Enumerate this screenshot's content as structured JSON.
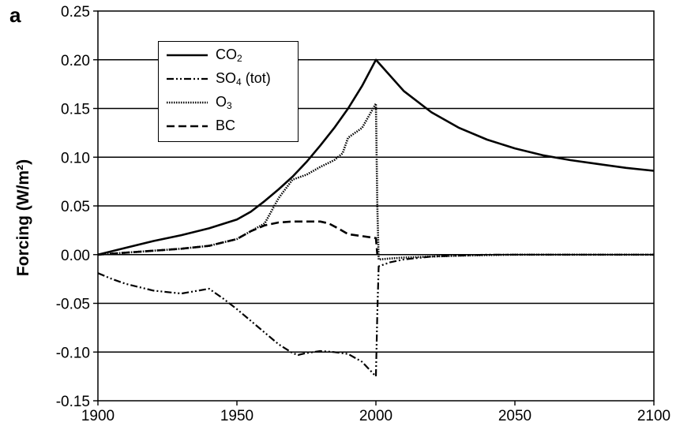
{
  "panel_label": "a",
  "chart_data": {
    "type": "line",
    "title": "",
    "xlabel": "",
    "ylabel": "Forcing (W/m²)",
    "xlim": [
      1900,
      2100
    ],
    "ylim": [
      -0.15,
      0.25
    ],
    "x_ticks": [
      1900,
      1950,
      2000,
      2050,
      2100
    ],
    "y_ticks": [
      -0.15,
      -0.1,
      -0.05,
      0.0,
      0.05,
      0.1,
      0.15,
      0.2,
      0.25
    ],
    "y_tick_labels": [
      "-0.15",
      "-0.10",
      "-0.05",
      "0.00",
      "0.05",
      "0.10",
      "0.15",
      "0.20",
      "0.25"
    ],
    "grid": "horizontal",
    "legend_position": "top-left",
    "series": [
      {
        "name": "CO2",
        "label_main": "CO",
        "label_sub": "2",
        "label_suffix": "",
        "style": "solid",
        "x": [
          1900,
          1910,
          1920,
          1930,
          1940,
          1950,
          1955,
          1960,
          1965,
          1970,
          1975,
          1980,
          1985,
          1990,
          1995,
          2000,
          2010,
          2020,
          2030,
          2040,
          2050,
          2060,
          2070,
          2080,
          2090,
          2100
        ],
        "y": [
          0.0,
          0.007,
          0.014,
          0.02,
          0.027,
          0.036,
          0.044,
          0.055,
          0.067,
          0.08,
          0.095,
          0.112,
          0.13,
          0.15,
          0.173,
          0.2,
          0.168,
          0.146,
          0.13,
          0.118,
          0.109,
          0.102,
          0.097,
          0.093,
          0.089,
          0.086
        ]
      },
      {
        "name": "SO4 (tot)",
        "label_main": "SO",
        "label_sub": "4",
        "label_suffix": " (tot)",
        "style": "dashdotdot",
        "x": [
          1900,
          1905,
          1910,
          1920,
          1930,
          1940,
          1945,
          1950,
          1955,
          1960,
          1965,
          1970,
          1972,
          1975,
          1980,
          1985,
          1990,
          1995,
          2000,
          2000.5,
          2001,
          2005,
          2010,
          2020,
          2030,
          2040,
          2050,
          2100
        ],
        "y": [
          -0.019,
          -0.025,
          -0.03,
          -0.037,
          -0.04,
          -0.035,
          -0.045,
          -0.056,
          -0.068,
          -0.08,
          -0.092,
          -0.101,
          -0.103,
          -0.101,
          -0.099,
          -0.1,
          -0.102,
          -0.11,
          -0.125,
          -0.06,
          -0.012,
          -0.008,
          -0.005,
          -0.002,
          -0.001,
          0.0,
          0.0,
          0.0
        ]
      },
      {
        "name": "O3",
        "label_main": "O",
        "label_sub": "3",
        "label_suffix": "",
        "style": "dotted",
        "x": [
          1900,
          1910,
          1920,
          1930,
          1940,
          1950,
          1960,
          1965,
          1970,
          1975,
          1980,
          1985,
          1988,
          1990,
          1995,
          2000,
          2000.5,
          2001,
          2005,
          2010,
          2020,
          2030,
          2050,
          2100
        ],
        "y": [
          0.0,
          0.002,
          0.004,
          0.006,
          0.009,
          0.016,
          0.032,
          0.058,
          0.077,
          0.082,
          0.09,
          0.097,
          0.104,
          0.12,
          0.13,
          0.155,
          0.05,
          -0.005,
          -0.004,
          -0.003,
          -0.002,
          -0.001,
          0.0,
          0.0
        ]
      },
      {
        "name": "BC",
        "label_main": "BC",
        "label_sub": "",
        "label_suffix": "",
        "style": "dashed",
        "x": [
          1900,
          1910,
          1920,
          1930,
          1940,
          1950,
          1955,
          1960,
          1965,
          1970,
          1975,
          1980,
          1983,
          1987,
          1990,
          1995,
          2000,
          2000.5
        ],
        "y": [
          0.0,
          0.002,
          0.004,
          0.006,
          0.009,
          0.016,
          0.024,
          0.03,
          0.033,
          0.034,
          0.034,
          0.034,
          0.032,
          0.026,
          0.021,
          0.019,
          0.017,
          0.0
        ]
      }
    ]
  }
}
